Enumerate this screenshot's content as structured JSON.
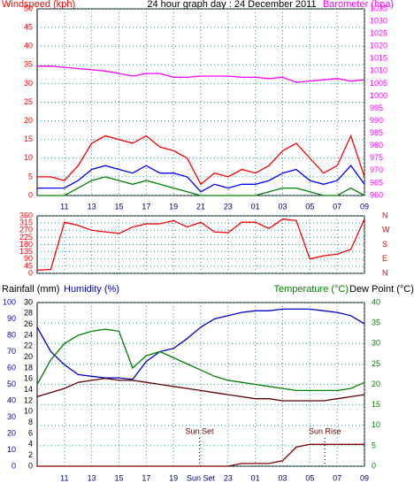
{
  "chart_data": [
    {
      "type": "line",
      "title": "24 hour graph day : 24 December 2011",
      "ylabel": "Windspeed (kph)",
      "y2label": "Barometer (hpa)",
      "x": [
        0,
        1,
        2,
        3,
        4,
        5,
        6,
        7,
        8,
        9,
        10,
        11,
        12,
        13,
        14,
        15,
        16,
        17,
        18,
        19,
        20,
        21,
        22,
        23,
        24
      ],
      "xlim": [
        0,
        24
      ],
      "xticks": [
        {
          "value": 2,
          "label": "11"
        },
        {
          "value": 4,
          "label": "13"
        },
        {
          "value": 6,
          "label": "15"
        },
        {
          "value": 8,
          "label": "17"
        },
        {
          "value": 10,
          "label": "19"
        },
        {
          "value": 12,
          "label": "21"
        },
        {
          "value": 14,
          "label": "23"
        },
        {
          "value": 16,
          "label": "01"
        },
        {
          "value": 18,
          "label": "03"
        },
        {
          "value": 20,
          "label": "05"
        },
        {
          "value": 22,
          "label": "07"
        },
        {
          "value": 24,
          "label": "09"
        }
      ],
      "ylim": [
        0,
        50
      ],
      "yticks": [
        0,
        5,
        10,
        15,
        20,
        25,
        30,
        35,
        40,
        45,
        50
      ],
      "y2lim": [
        960,
        1035
      ],
      "y2ticks": [
        960,
        965,
        970,
        975,
        980,
        985,
        990,
        995,
        1000,
        1005,
        1010,
        1015,
        1020,
        1025,
        1030,
        1035
      ],
      "grid": "y",
      "series": [
        {
          "color": "#ff00ff",
          "axis": "y2",
          "values": [
            1012,
            1012,
            1011.5,
            1011,
            1010.5,
            1010,
            1009,
            1008,
            1009,
            1009,
            1007.5,
            1007.5,
            1008,
            1008,
            1008,
            1007.5,
            1007.5,
            1007,
            1007.5,
            1005.5,
            1006,
            1006.5,
            1007,
            1006,
            1006.5
          ]
        },
        {
          "color": "#ff0000",
          "values": [
            5,
            5,
            4,
            8,
            14,
            16,
            15,
            14,
            16,
            13,
            12,
            10,
            3,
            6,
            5,
            7,
            6,
            8,
            12,
            14,
            10,
            6,
            8,
            16,
            5
          ]
        },
        {
          "color": "#0000ff",
          "values": [
            2,
            2,
            2,
            4,
            7,
            8,
            7,
            6,
            8,
            6,
            6,
            5,
            1,
            3,
            2,
            3,
            3,
            4,
            6,
            7,
            4,
            3,
            4,
            8,
            3
          ]
        },
        {
          "color": "#008000",
          "values": [
            0,
            0,
            0,
            2,
            4,
            5,
            4,
            3,
            4,
            3,
            2,
            1,
            0,
            0,
            0,
            0,
            0,
            1,
            2,
            2,
            1,
            0,
            0,
            2,
            0
          ]
        }
      ]
    },
    {
      "type": "line",
      "x": [
        0,
        1,
        2,
        3,
        4,
        5,
        6,
        7,
        8,
        9,
        10,
        11,
        12,
        13,
        14,
        15,
        16,
        17,
        18,
        19,
        20,
        21,
        22,
        23,
        24
      ],
      "xlim": [
        0,
        24
      ],
      "ylim": [
        0,
        360
      ],
      "yticks": [
        0,
        45,
        90,
        135,
        180,
        225,
        270,
        315,
        360
      ],
      "y2lim": [
        0,
        360
      ],
      "y2ticks": [
        {
          "value": 360,
          "label": "N"
        },
        {
          "value": 270,
          "label": "W"
        },
        {
          "value": 180,
          "label": "S"
        },
        {
          "value": 90,
          "label": "E"
        },
        {
          "value": 0,
          "label": "N"
        }
      ],
      "grid": "y",
      "series": [
        {
          "color": "#ff0000",
          "values": [
            20,
            25,
            320,
            300,
            270,
            260,
            250,
            290,
            310,
            310,
            330,
            290,
            320,
            260,
            255,
            320,
            320,
            280,
            340,
            330,
            90,
            110,
            120,
            150,
            340
          ]
        }
      ]
    },
    {
      "type": "line",
      "ylabel": "Rainfall (mm)",
      "y3label": "Humidity (%)",
      "y2label": "Temperature (°C)",
      "y2label2": "Dew Point (°C)",
      "x": [
        0,
        1,
        2,
        3,
        4,
        5,
        6,
        7,
        8,
        9,
        10,
        11,
        12,
        13,
        14,
        15,
        16,
        17,
        18,
        19,
        20,
        21,
        22,
        23,
        24
      ],
      "xlim": [
        0,
        24
      ],
      "xticks": [
        {
          "value": 2,
          "label": "11"
        },
        {
          "value": 4,
          "label": "13"
        },
        {
          "value": 6,
          "label": "15"
        },
        {
          "value": 8,
          "label": "17"
        },
        {
          "value": 10,
          "label": "19"
        },
        {
          "value": 12,
          "label": "Sun Set"
        },
        {
          "value": 14,
          "label": "23"
        },
        {
          "value": 16,
          "label": "01"
        },
        {
          "value": 18,
          "label": "03"
        },
        {
          "value": 20,
          "label": "05"
        },
        {
          "value": 22,
          "label": "07"
        },
        {
          "value": 24,
          "label": "09"
        }
      ],
      "ylim": [
        0,
        30
      ],
      "yticks": [
        0,
        2,
        4,
        6,
        8,
        10,
        12,
        14,
        16,
        18,
        20,
        22,
        24,
        26,
        28,
        30
      ],
      "y3lim": [
        0,
        100
      ],
      "y3ticks": [
        0,
        10,
        20,
        30,
        40,
        50,
        60,
        70,
        80,
        90,
        100
      ],
      "y2lim": [
        0,
        40
      ],
      "y2ticks": [
        0,
        5,
        10,
        15,
        20,
        25,
        30,
        35,
        40
      ],
      "grid": "y2",
      "annotations": [
        {
          "text": "Sun Set",
          "x": 11.9
        },
        {
          "text": "Sun Rise",
          "x": 21.1
        }
      ],
      "series": [
        {
          "color": "#0000cc",
          "axis": "y3",
          "values": [
            85,
            70,
            62,
            56,
            55,
            54,
            54,
            53,
            64,
            70,
            72,
            78,
            85,
            90,
            92,
            94,
            95,
            95,
            96,
            96,
            96,
            95,
            94,
            92,
            87
          ]
        },
        {
          "color": "#008000",
          "axis": "y2",
          "values": [
            20,
            26,
            30,
            32,
            33,
            33.5,
            33,
            24,
            27,
            28,
            26.5,
            25,
            23.5,
            22,
            21,
            20.5,
            20,
            19.5,
            19,
            18.5,
            18.5,
            18.5,
            18.5,
            19,
            20.5
          ]
        },
        {
          "color": "#600000",
          "axis": "y2",
          "values": [
            17,
            18,
            19,
            20.5,
            21,
            21.5,
            21,
            21,
            20.5,
            20,
            19.5,
            19,
            18.5,
            18,
            17.5,
            17,
            16.5,
            16.5,
            16,
            16,
            16,
            16,
            16.5,
            17,
            17.5
          ]
        },
        {
          "color": "#800000",
          "values": [
            0,
            0,
            0,
            0,
            0,
            0,
            0,
            0,
            0,
            0,
            0,
            0,
            0,
            0,
            0,
            0.5,
            0.5,
            0.5,
            1,
            3.5,
            4,
            4,
            4,
            4,
            4
          ]
        }
      ]
    }
  ]
}
